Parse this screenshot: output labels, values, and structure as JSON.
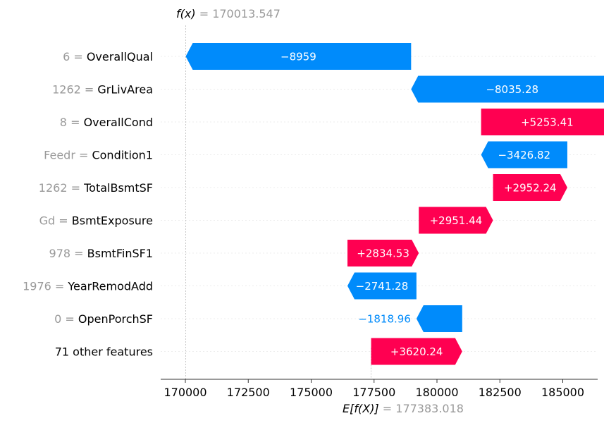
{
  "chart_data": {
    "type": "waterfall",
    "fx_label": "f(x)",
    "fx_value": "170013.547",
    "efx_label": "E[f(X)]",
    "efx_value": "177383.018",
    "base_value": 177383.018,
    "final_value": 170013.547,
    "xlim": [
      169000,
      187000
    ],
    "xticks": [
      170000,
      172500,
      175000,
      177500,
      180000,
      182500,
      185000
    ],
    "features": [
      {
        "value": "6",
        "name": "OverallQual",
        "contribution": -8959,
        "label": "−8959"
      },
      {
        "value": "1262",
        "name": "GrLivArea",
        "contribution": -8035.28,
        "label": "−8035.28"
      },
      {
        "value": "8",
        "name": "OverallCond",
        "contribution": 5253.41,
        "label": "+5253.41"
      },
      {
        "value": "Feedr",
        "name": "Condition1",
        "contribution": -3426.82,
        "label": "−3426.82"
      },
      {
        "value": "1262",
        "name": "TotalBsmtSF",
        "contribution": 2952.24,
        "label": "+2952.24"
      },
      {
        "value": "Gd",
        "name": "BsmtExposure",
        "contribution": 2951.44,
        "label": "+2951.44"
      },
      {
        "value": "978",
        "name": "BsmtFinSF1",
        "contribution": 2834.53,
        "label": "+2834.53"
      },
      {
        "value": "1976",
        "name": "YearRemodAdd",
        "contribution": -2741.28,
        "label": "−2741.28"
      },
      {
        "value": "0",
        "name": "OpenPorchSF",
        "contribution": -1818.96,
        "label": "−1818.96"
      },
      {
        "value": "",
        "name": "71 other features",
        "contribution": 3620.24,
        "label": "+3620.24"
      }
    ],
    "colors": {
      "positive": "#ff0051",
      "negative": "#008bfb",
      "muted": "#999999"
    }
  }
}
